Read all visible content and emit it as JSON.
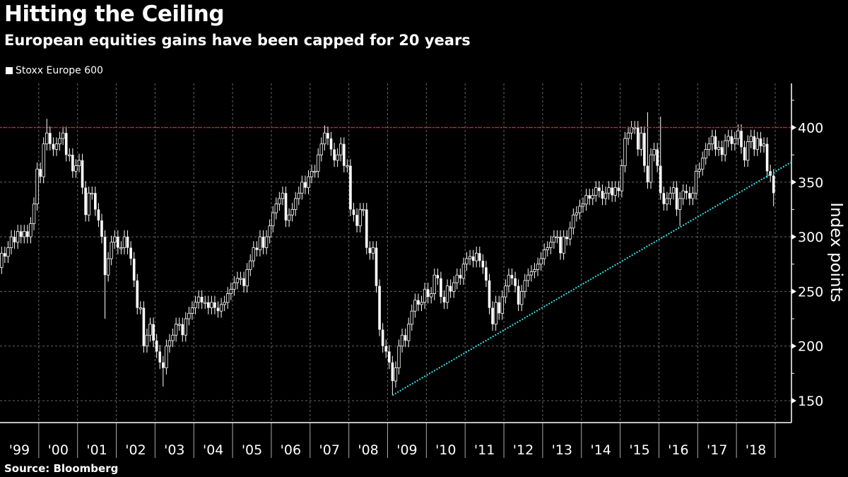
{
  "title": "Hitting the Ceiling",
  "subtitle": "European equities gains have been capped for 20 years",
  "source": "Source: Bloomberg",
  "colors": {
    "candle": "#ffffff",
    "ceiling": "#e8102a",
    "trend": "#33e0e8",
    "grid": "#666666"
  },
  "chart_data": {
    "type": "candlestick",
    "legend": [
      "Stoxx Europe 600"
    ],
    "legend_position": "top-left",
    "ylabel": "Index points",
    "ylim": [
      130,
      440
    ],
    "yticks": [
      150,
      200,
      250,
      300,
      350,
      400
    ],
    "xtick_labels": [
      "'99",
      "'00",
      "'01",
      "'02",
      "'03",
      "'04",
      "'05",
      "'06",
      "'07",
      "'08",
      "'09",
      "'10",
      "'11",
      "'12",
      "'13",
      "'14",
      "'15",
      "'16",
      "'17",
      "'18"
    ],
    "x_start_year": 1999,
    "frequency": "monthly",
    "first_open": 272,
    "close": [
      285,
      282,
      290,
      300,
      295,
      305,
      300,
      305,
      300,
      312,
      330,
      362,
      355,
      385,
      395,
      385,
      380,
      385,
      390,
      395,
      375,
      375,
      360,
      365,
      370,
      345,
      320,
      340,
      340,
      325,
      315,
      300,
      265,
      280,
      295,
      300,
      290,
      290,
      300,
      290,
      280,
      260,
      235,
      235,
      200,
      210,
      220,
      205,
      195,
      185,
      180,
      200,
      205,
      210,
      220,
      220,
      210,
      225,
      230,
      235,
      240,
      245,
      240,
      240,
      235,
      240,
      235,
      232,
      238,
      240,
      248,
      252,
      258,
      262,
      262,
      255,
      270,
      278,
      290,
      288,
      300,
      290,
      300,
      310,
      322,
      330,
      335,
      340,
      315,
      320,
      325,
      335,
      340,
      350,
      345,
      355,
      360,
      360,
      375,
      385,
      395,
      390,
      380,
      370,
      375,
      385,
      365,
      365,
      325,
      320,
      310,
      325,
      325,
      290,
      285,
      290,
      255,
      215,
      200,
      195,
      185,
      168,
      180,
      200,
      210,
      205,
      220,
      232,
      242,
      238,
      240,
      252,
      245,
      248,
      265,
      262,
      245,
      240,
      255,
      250,
      258,
      265,
      262,
      275,
      280,
      282,
      278,
      285,
      278,
      272,
      260,
      235,
      220,
      240,
      230,
      245,
      255,
      265,
      262,
      255,
      238,
      250,
      260,
      265,
      268,
      270,
      275,
      280,
      288,
      290,
      295,
      300,
      300,
      285,
      300,
      298,
      308,
      320,
      322,
      328,
      330,
      338,
      335,
      338,
      345,
      342,
      335,
      340,
      345,
      338,
      345,
      342,
      365,
      390,
      395,
      400,
      400,
      380,
      395,
      365,
      350,
      375,
      380,
      365,
      340,
      330,
      335,
      340,
      345,
      325,
      335,
      342,
      340,
      335,
      340,
      360,
      362,
      372,
      380,
      385,
      392,
      380,
      382,
      375,
      388,
      392,
      385,
      390,
      397,
      382,
      370,
      387,
      392,
      380,
      390,
      383,
      385,
      360,
      356,
      340
    ],
    "notable_extremes": [
      {
        "month_index": 14,
        "high": 408
      },
      {
        "month_index": 32,
        "low": 225
      },
      {
        "month_index": 50,
        "low": 163
      },
      {
        "month_index": 100,
        "high": 402
      },
      {
        "month_index": 121,
        "low": 155
      },
      {
        "month_index": 200,
        "high": 414
      },
      {
        "month_index": 204,
        "high": 410
      },
      {
        "month_index": 210,
        "low": 310
      },
      {
        "month_index": 228,
        "high": 403
      },
      {
        "month_index": 239,
        "low": 328
      }
    ],
    "annotations": [
      {
        "type": "hline",
        "y": 400,
        "label": "ceiling",
        "style": "dotted"
      },
      {
        "type": "trendline",
        "from": {
          "month_index": 121,
          "y": 155
        },
        "to": {
          "year": 2019.4,
          "y": 368
        },
        "style": "dotted"
      }
    ]
  }
}
